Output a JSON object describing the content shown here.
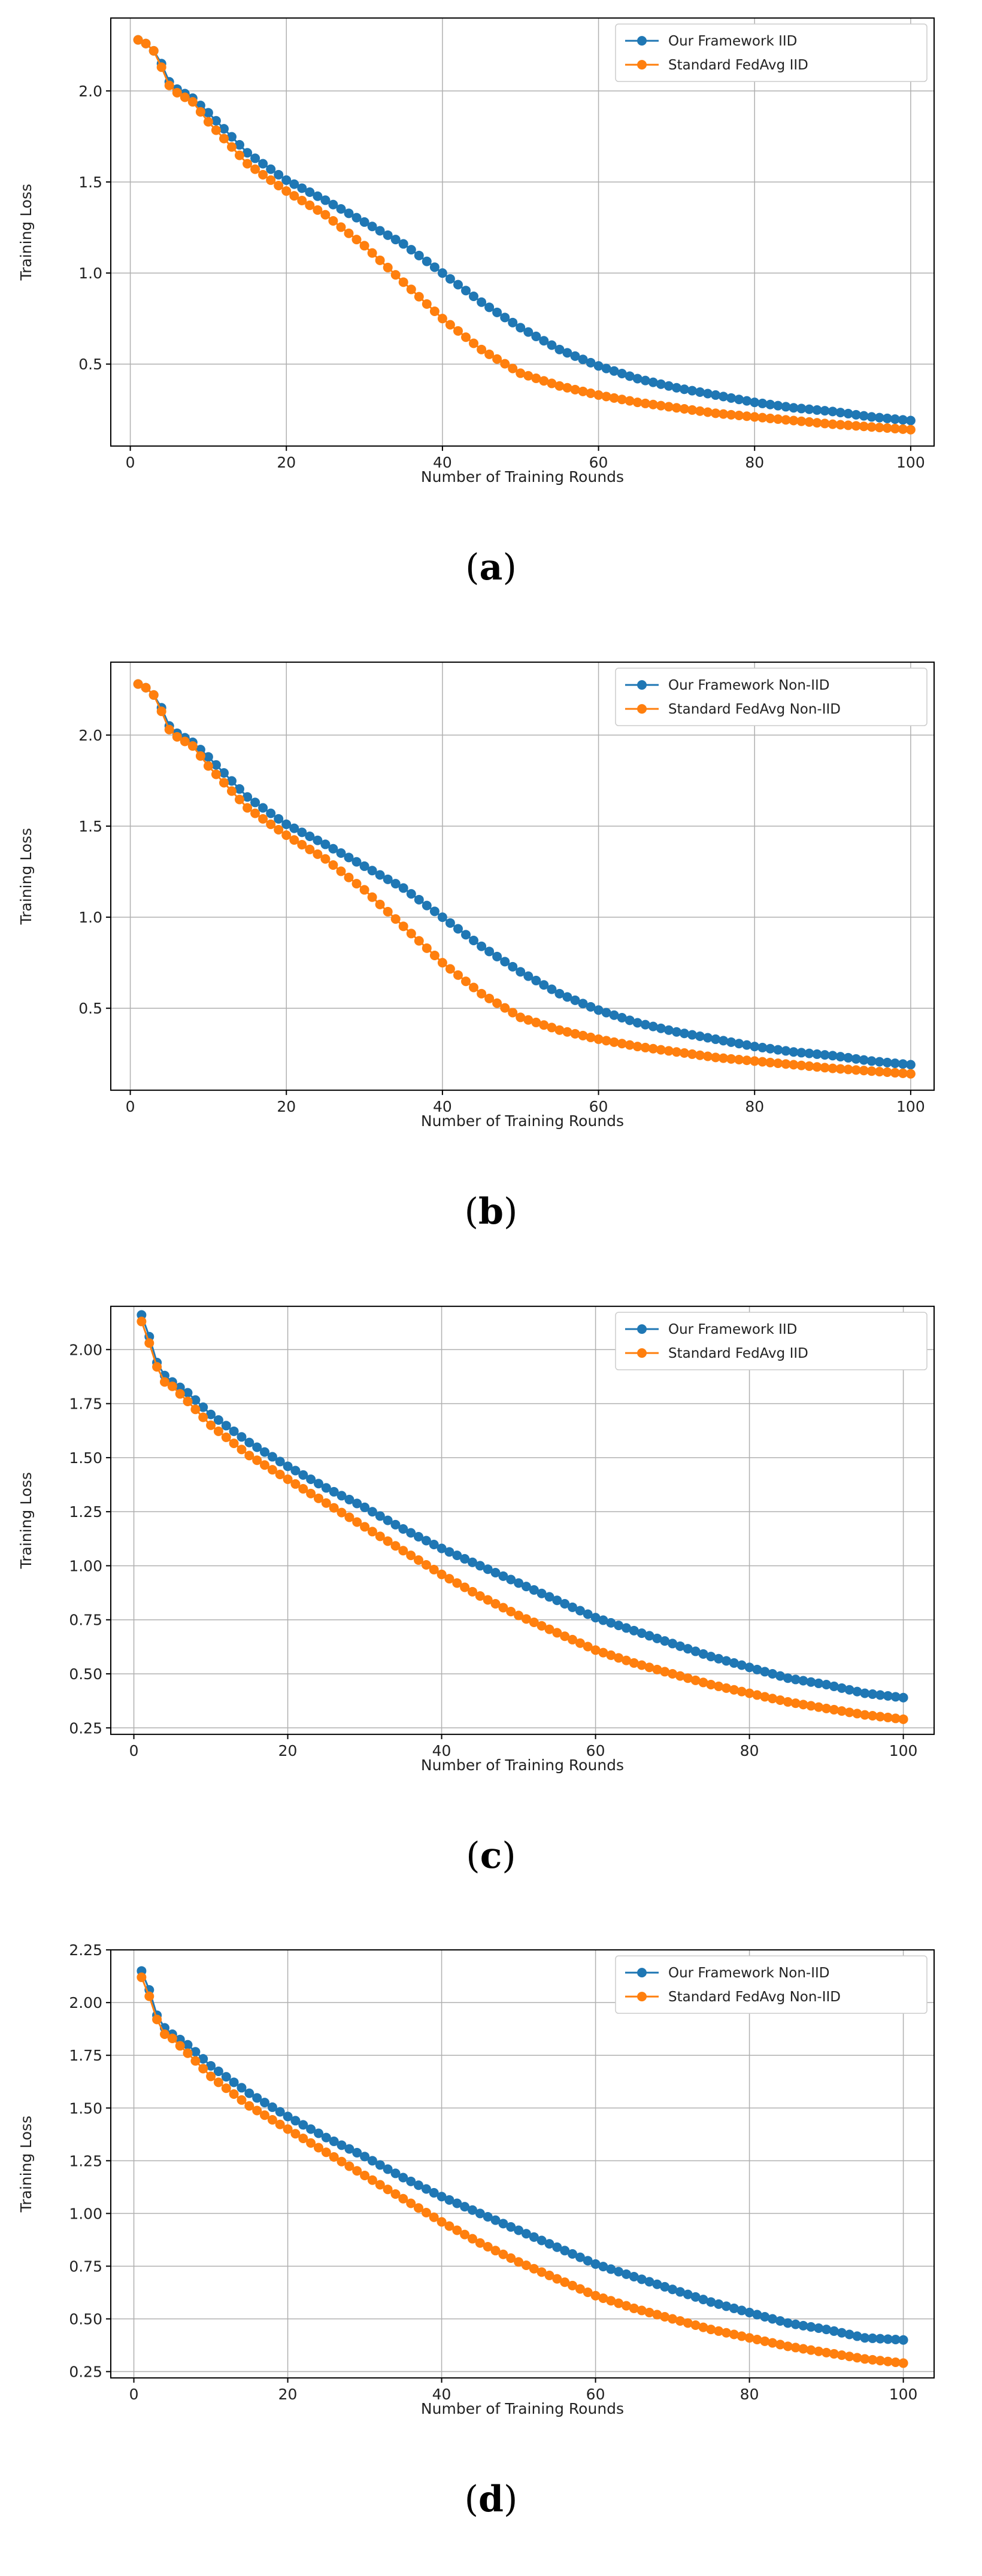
{
  "chart_data": [
    {
      "type": "line",
      "panel": "a",
      "caption": {
        "open": "(",
        "letter": "a",
        "close": ")"
      },
      "title": "",
      "xlabel": "Number of Training Rounds",
      "ylabel": "Training Loss",
      "xlim": [
        -2.5,
        103
      ],
      "ylim": [
        0.05,
        2.4
      ],
      "xticks": [
        0,
        20,
        40,
        60,
        80,
        100
      ],
      "xtick_labels": [
        "0",
        "20",
        "40",
        "60",
        "80",
        "100"
      ],
      "yticks": [
        0.5,
        1.0,
        1.5,
        2.0
      ],
      "ytick_labels": [
        "0.5",
        "1.0",
        "1.5",
        "2.0"
      ],
      "grid": true,
      "legend_position": "top-right",
      "series": [
        {
          "name": "Our Framework IID",
          "color": "#1f77b4",
          "anchors": [
            [
              1,
              2.28
            ],
            [
              2,
              2.26
            ],
            [
              3,
              2.22
            ],
            [
              4,
              2.15
            ],
            [
              5,
              2.05
            ],
            [
              6,
              2.01
            ],
            [
              8,
              1.96
            ],
            [
              10,
              1.88
            ],
            [
              15,
              1.66
            ],
            [
              20,
              1.51
            ],
            [
              25,
              1.4
            ],
            [
              30,
              1.28
            ],
            [
              35,
              1.16
            ],
            [
              40,
              1.0
            ],
            [
              45,
              0.84
            ],
            [
              50,
              0.7
            ],
            [
              55,
              0.58
            ],
            [
              60,
              0.49
            ],
            [
              65,
              0.42
            ],
            [
              70,
              0.37
            ],
            [
              75,
              0.33
            ],
            [
              80,
              0.29
            ],
            [
              85,
              0.26
            ],
            [
              90,
              0.24
            ],
            [
              95,
              0.21
            ],
            [
              100,
              0.19
            ]
          ]
        },
        {
          "name": "Standard FedAvg IID",
          "color": "#ff7f0e",
          "anchors": [
            [
              1,
              2.28
            ],
            [
              2,
              2.26
            ],
            [
              3,
              2.22
            ],
            [
              4,
              2.13
            ],
            [
              5,
              2.03
            ],
            [
              6,
              1.99
            ],
            [
              8,
              1.94
            ],
            [
              10,
              1.83
            ],
            [
              15,
              1.6
            ],
            [
              20,
              1.45
            ],
            [
              25,
              1.32
            ],
            [
              30,
              1.15
            ],
            [
              35,
              0.95
            ],
            [
              40,
              0.75
            ],
            [
              45,
              0.58
            ],
            [
              50,
              0.45
            ],
            [
              55,
              0.38
            ],
            [
              60,
              0.33
            ],
            [
              65,
              0.29
            ],
            [
              70,
              0.26
            ],
            [
              75,
              0.23
            ],
            [
              80,
              0.21
            ],
            [
              85,
              0.19
            ],
            [
              90,
              0.17
            ],
            [
              95,
              0.155
            ],
            [
              100,
              0.14
            ]
          ]
        }
      ]
    },
    {
      "type": "line",
      "panel": "b",
      "caption": {
        "open": "(",
        "letter": "b",
        "close": ")"
      },
      "title": "",
      "xlabel": "Number of Training Rounds",
      "ylabel": "Training Loss",
      "xlim": [
        -2.5,
        103
      ],
      "ylim": [
        0.05,
        2.4
      ],
      "xticks": [
        0,
        20,
        40,
        60,
        80,
        100
      ],
      "xtick_labels": [
        "0",
        "20",
        "40",
        "60",
        "80",
        "100"
      ],
      "yticks": [
        0.5,
        1.0,
        1.5,
        2.0
      ],
      "ytick_labels": [
        "0.5",
        "1.0",
        "1.5",
        "2.0"
      ],
      "grid": true,
      "legend_position": "top-right",
      "series": [
        {
          "name": "Our Framework Non-IID",
          "color": "#1f77b4",
          "anchors": [
            [
              1,
              2.28
            ],
            [
              2,
              2.26
            ],
            [
              3,
              2.22
            ],
            [
              4,
              2.15
            ],
            [
              5,
              2.05
            ],
            [
              6,
              2.01
            ],
            [
              8,
              1.96
            ],
            [
              10,
              1.88
            ],
            [
              15,
              1.66
            ],
            [
              20,
              1.51
            ],
            [
              25,
              1.4
            ],
            [
              30,
              1.28
            ],
            [
              35,
              1.16
            ],
            [
              40,
              1.0
            ],
            [
              45,
              0.84
            ],
            [
              50,
              0.7
            ],
            [
              55,
              0.58
            ],
            [
              60,
              0.49
            ],
            [
              65,
              0.42
            ],
            [
              70,
              0.37
            ],
            [
              75,
              0.33
            ],
            [
              80,
              0.29
            ],
            [
              85,
              0.26
            ],
            [
              90,
              0.24
            ],
            [
              95,
              0.21
            ],
            [
              100,
              0.19
            ]
          ]
        },
        {
          "name": "Standard FedAvg Non-IID",
          "color": "#ff7f0e",
          "anchors": [
            [
              1,
              2.28
            ],
            [
              2,
              2.26
            ],
            [
              3,
              2.22
            ],
            [
              4,
              2.13
            ],
            [
              5,
              2.03
            ],
            [
              6,
              1.99
            ],
            [
              8,
              1.94
            ],
            [
              10,
              1.83
            ],
            [
              15,
              1.6
            ],
            [
              20,
              1.45
            ],
            [
              25,
              1.32
            ],
            [
              30,
              1.15
            ],
            [
              35,
              0.95
            ],
            [
              40,
              0.75
            ],
            [
              45,
              0.58
            ],
            [
              50,
              0.45
            ],
            [
              55,
              0.38
            ],
            [
              60,
              0.33
            ],
            [
              65,
              0.29
            ],
            [
              70,
              0.26
            ],
            [
              75,
              0.23
            ],
            [
              80,
              0.21
            ],
            [
              85,
              0.19
            ],
            [
              90,
              0.17
            ],
            [
              95,
              0.155
            ],
            [
              100,
              0.14
            ]
          ]
        }
      ]
    },
    {
      "type": "line",
      "panel": "c",
      "caption": {
        "open": "(",
        "letter": "c",
        "close": ")"
      },
      "title": "",
      "xlabel": "Number of Training Rounds",
      "ylabel": "Training Loss",
      "xlim": [
        -3,
        104
      ],
      "ylim": [
        0.22,
        2.2
      ],
      "xticks": [
        0,
        20,
        40,
        60,
        80,
        100
      ],
      "xtick_labels": [
        "0",
        "20",
        "40",
        "60",
        "80",
        "100"
      ],
      "yticks": [
        0.25,
        0.5,
        0.75,
        1.0,
        1.25,
        1.5,
        1.75,
        2.0
      ],
      "ytick_labels": [
        "0.25",
        "0.50",
        "0.75",
        "1.00",
        "1.25",
        "1.50",
        "1.75",
        "2.00"
      ],
      "grid": true,
      "legend_position": "top-right",
      "series": [
        {
          "name": "Our Framework IID",
          "color": "#1f77b4",
          "anchors": [
            [
              1,
              2.16
            ],
            [
              2,
              2.06
            ],
            [
              3,
              1.94
            ],
            [
              4,
              1.88
            ],
            [
              5,
              1.85
            ],
            [
              7,
              1.8
            ],
            [
              10,
              1.7
            ],
            [
              15,
              1.57
            ],
            [
              20,
              1.46
            ],
            [
              25,
              1.36
            ],
            [
              30,
              1.27
            ],
            [
              35,
              1.17
            ],
            [
              40,
              1.08
            ],
            [
              45,
              1.0
            ],
            [
              50,
              0.92
            ],
            [
              55,
              0.84
            ],
            [
              60,
              0.76
            ],
            [
              65,
              0.7
            ],
            [
              70,
              0.64
            ],
            [
              75,
              0.58
            ],
            [
              80,
              0.53
            ],
            [
              85,
              0.48
            ],
            [
              90,
              0.45
            ],
            [
              95,
              0.41
            ],
            [
              100,
              0.39
            ]
          ]
        },
        {
          "name": "Standard FedAvg IID",
          "color": "#ff7f0e",
          "anchors": [
            [
              1,
              2.13
            ],
            [
              2,
              2.03
            ],
            [
              3,
              1.92
            ],
            [
              4,
              1.85
            ],
            [
              5,
              1.83
            ],
            [
              7,
              1.76
            ],
            [
              10,
              1.65
            ],
            [
              15,
              1.51
            ],
            [
              20,
              1.4
            ],
            [
              25,
              1.29
            ],
            [
              30,
              1.18
            ],
            [
              35,
              1.07
            ],
            [
              40,
              0.96
            ],
            [
              45,
              0.86
            ],
            [
              50,
              0.77
            ],
            [
              55,
              0.69
            ],
            [
              60,
              0.61
            ],
            [
              65,
              0.55
            ],
            [
              70,
              0.5
            ],
            [
              75,
              0.45
            ],
            [
              80,
              0.41
            ],
            [
              85,
              0.37
            ],
            [
              90,
              0.34
            ],
            [
              95,
              0.31
            ],
            [
              100,
              0.29
            ]
          ]
        }
      ]
    },
    {
      "type": "line",
      "panel": "d",
      "caption": {
        "open": "(",
        "letter": "d",
        "close": ")"
      },
      "title": "",
      "xlabel": "Number of Training Rounds",
      "ylabel": "Training Loss",
      "xlim": [
        -3,
        104
      ],
      "ylim": [
        0.22,
        2.25
      ],
      "xticks": [
        0,
        20,
        40,
        60,
        80,
        100
      ],
      "xtick_labels": [
        "0",
        "20",
        "40",
        "60",
        "80",
        "100"
      ],
      "yticks": [
        0.25,
        0.5,
        0.75,
        1.0,
        1.25,
        1.5,
        1.75,
        2.0,
        2.25
      ],
      "ytick_labels": [
        "0.25",
        "0.50",
        "0.75",
        "1.00",
        "1.25",
        "1.50",
        "1.75",
        "2.00",
        "2.25"
      ],
      "grid": true,
      "legend_position": "top-right",
      "series": [
        {
          "name": "Our Framework Non-IID",
          "color": "#1f77b4",
          "anchors": [
            [
              1,
              2.15
            ],
            [
              2,
              2.06
            ],
            [
              3,
              1.94
            ],
            [
              4,
              1.88
            ],
            [
              5,
              1.85
            ],
            [
              7,
              1.8
            ],
            [
              10,
              1.7
            ],
            [
              15,
              1.57
            ],
            [
              20,
              1.46
            ],
            [
              25,
              1.36
            ],
            [
              30,
              1.27
            ],
            [
              35,
              1.17
            ],
            [
              40,
              1.08
            ],
            [
              45,
              1.0
            ],
            [
              50,
              0.92
            ],
            [
              55,
              0.84
            ],
            [
              60,
              0.76
            ],
            [
              65,
              0.7
            ],
            [
              70,
              0.64
            ],
            [
              75,
              0.58
            ],
            [
              80,
              0.53
            ],
            [
              85,
              0.48
            ],
            [
              90,
              0.45
            ],
            [
              95,
              0.41
            ],
            [
              100,
              0.4
            ]
          ]
        },
        {
          "name": "Standard FedAvg Non-IID",
          "color": "#ff7f0e",
          "anchors": [
            [
              1,
              2.12
            ],
            [
              2,
              2.03
            ],
            [
              3,
              1.92
            ],
            [
              4,
              1.85
            ],
            [
              5,
              1.83
            ],
            [
              7,
              1.76
            ],
            [
              10,
              1.65
            ],
            [
              15,
              1.51
            ],
            [
              20,
              1.4
            ],
            [
              25,
              1.29
            ],
            [
              30,
              1.18
            ],
            [
              35,
              1.07
            ],
            [
              40,
              0.96
            ],
            [
              45,
              0.86
            ],
            [
              50,
              0.77
            ],
            [
              55,
              0.69
            ],
            [
              60,
              0.61
            ],
            [
              65,
              0.55
            ],
            [
              70,
              0.5
            ],
            [
              75,
              0.45
            ],
            [
              80,
              0.41
            ],
            [
              85,
              0.37
            ],
            [
              90,
              0.34
            ],
            [
              95,
              0.31
            ],
            [
              100,
              0.29
            ]
          ]
        }
      ]
    }
  ]
}
